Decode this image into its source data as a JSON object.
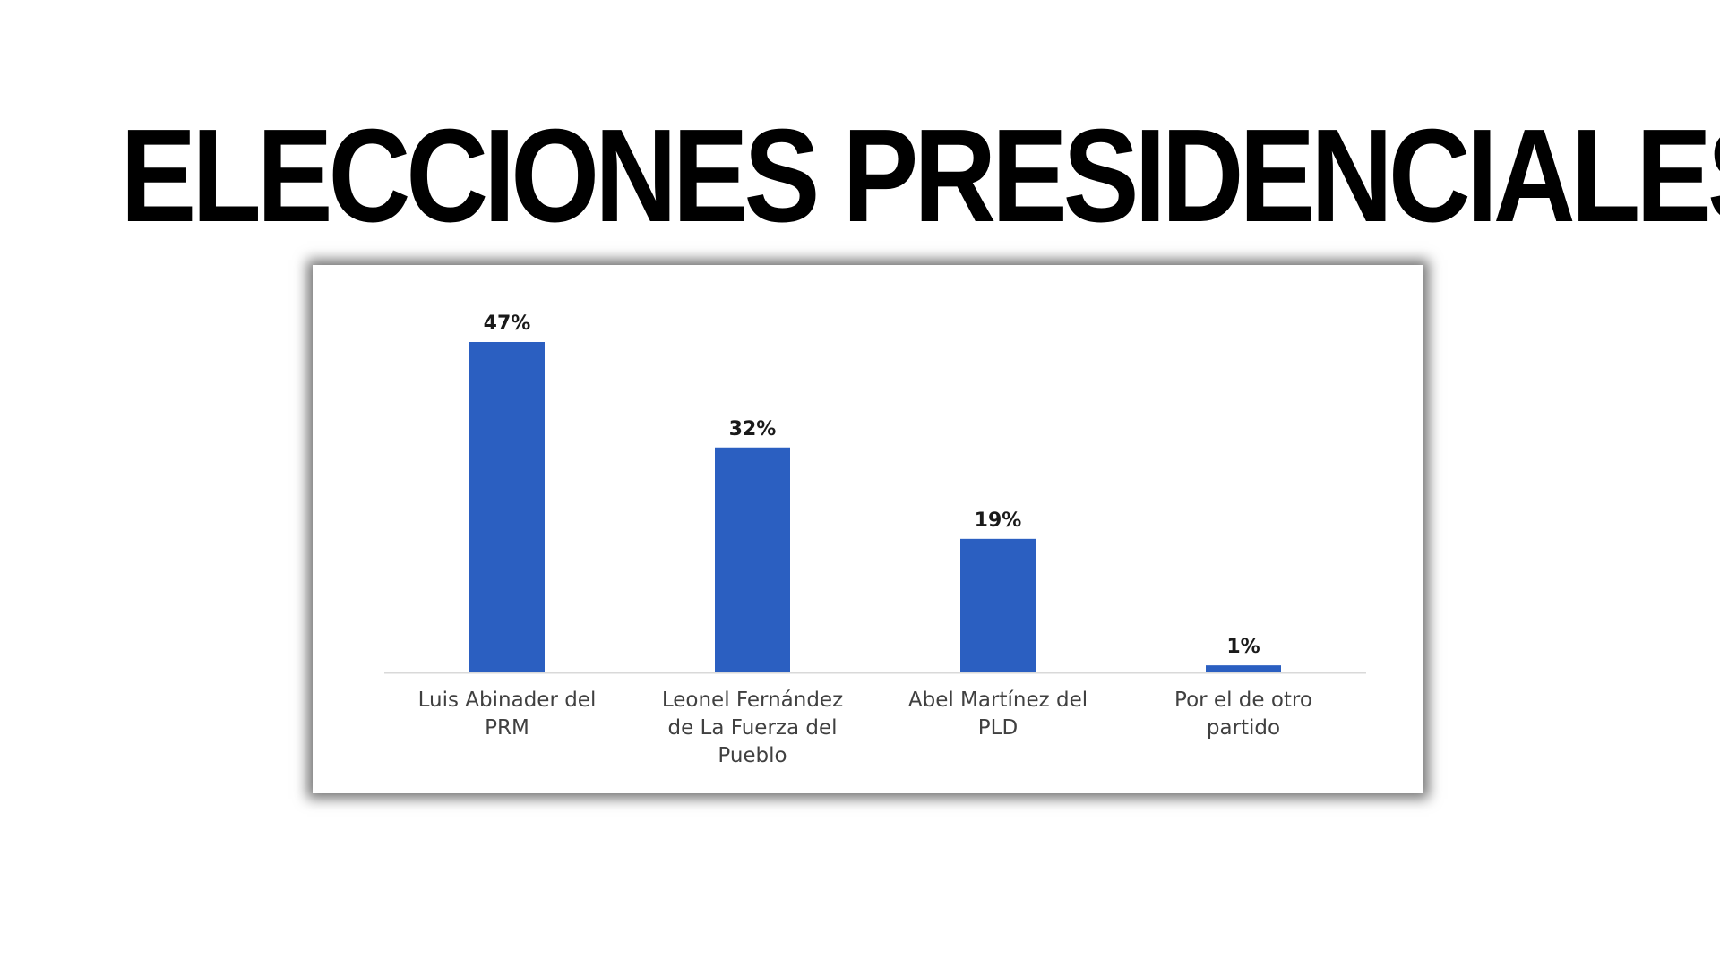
{
  "headline": "ELECCIONES PRESIDENCIALES",
  "chart_data": {
    "type": "bar",
    "categories": [
      [
        "Luis Abinader del",
        "PRM"
      ],
      [
        "Leonel Fernández",
        "de La Fuerza del",
        "Pueblo"
      ],
      [
        "Abel Martínez del",
        "PLD"
      ],
      [
        "Por el de otro",
        "partido"
      ]
    ],
    "values": [
      47,
      32,
      19,
      1
    ],
    "data_labels": [
      "47%",
      "32%",
      "19%",
      "1%"
    ],
    "title": "",
    "xlabel": "",
    "ylabel": "",
    "ylim": [
      0,
      47
    ],
    "grid": false,
    "legend": "none",
    "bar_color": "#2b5fc1",
    "axis_color": "#d9d9d9"
  }
}
